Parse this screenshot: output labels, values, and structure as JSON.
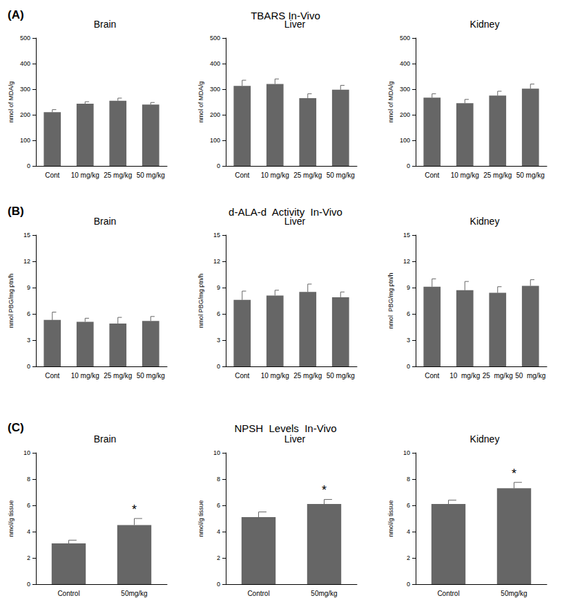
{
  "panels": [
    {
      "label": "(A)",
      "title": "TBARS In-Vivo"
    },
    {
      "label": "(B)",
      "title": "d-ALA-d  Activity  In-Vivo"
    },
    {
      "label": "(C)",
      "title": "NPSH  Levels  In-Vivo"
    }
  ],
  "chart_data": [
    {
      "type": "bar",
      "title": "Brain",
      "y_label": "nmol of MDA/g",
      "categories": [
        "Cont",
        "10 mg/kg",
        "25 mg/kg",
        "50 mg/kg"
      ],
      "values": [
        210,
        243,
        255,
        240
      ],
      "errors": [
        10,
        8,
        10,
        8
      ],
      "color": "#666666",
      "ylim": [
        0,
        500
      ],
      "yticks": [
        0,
        100,
        200,
        300,
        400,
        500
      ],
      "grid": false
    },
    {
      "type": "bar",
      "title": "Liver",
      "y_label": "nmol of MDA/g",
      "categories": [
        "Cont",
        "10 mg/kg",
        "25 mg/kg",
        "50 mg/kg"
      ],
      "values": [
        313,
        320,
        265,
        298
      ],
      "errors": [
        22,
        20,
        17,
        17
      ],
      "color": "#666666",
      "ylim": [
        0,
        500
      ],
      "yticks": [
        0,
        100,
        200,
        300,
        400,
        500
      ],
      "grid": false
    },
    {
      "type": "bar",
      "title": "Kidney",
      "y_label": "nmol of MDA/g",
      "categories": [
        "Cont",
        "10 mg/kg",
        "25 mg/kg",
        "50 mg/kg"
      ],
      "values": [
        267,
        245,
        275,
        302
      ],
      "errors": [
        15,
        15,
        17,
        18
      ],
      "color": "#666666",
      "ylim": [
        0,
        500
      ],
      "yticks": [
        0,
        100,
        200,
        300,
        400,
        500
      ],
      "grid": false
    },
    {
      "type": "bar",
      "title": "Brain",
      "y_label": "nmol PBG/mg ptn/h",
      "categories": [
        "Cont",
        "10 mg/kg",
        "25 mg/kg",
        "50 mg/kg"
      ],
      "values": [
        5.3,
        5.1,
        4.9,
        5.2
      ],
      "errors": [
        0.9,
        0.4,
        0.7,
        0.5
      ],
      "color": "#666666",
      "ylim": [
        0,
        15
      ],
      "yticks": [
        0,
        3,
        6,
        9,
        12,
        15
      ],
      "grid": false
    },
    {
      "type": "bar",
      "title": "Liver",
      "y_label": "nmol PBG/mg ptn/h",
      "categories": [
        "Cont",
        "10 mg/kg",
        "25 mg/kg",
        "50 mg/kg"
      ],
      "values": [
        7.6,
        8.1,
        8.5,
        7.9
      ],
      "errors": [
        1.0,
        0.6,
        0.9,
        0.6
      ],
      "color": "#666666",
      "ylim": [
        0,
        15
      ],
      "yticks": [
        0,
        3,
        6,
        9,
        12,
        15
      ],
      "grid": false
    },
    {
      "type": "bar",
      "title": "Kidney",
      "y_label": "nmol  PBG/mg ptn/h",
      "categories": [
        "Cont",
        "10  mg/kg",
        "25  mg/kg",
        "50  mg/kg"
      ],
      "values": [
        9.1,
        8.7,
        8.4,
        9.2
      ],
      "errors": [
        0.9,
        1.0,
        0.7,
        0.7
      ],
      "color": "#666666",
      "ylim": [
        0,
        15
      ],
      "yticks": [
        0,
        3,
        6,
        9,
        12,
        15
      ],
      "grid": false
    },
    {
      "type": "bar",
      "title": "Brain",
      "y_label": "nmol/g tissue",
      "categories": [
        "Control",
        "50mg/kg"
      ],
      "values": [
        3.1,
        4.5
      ],
      "errors": [
        0.25,
        0.5
      ],
      "annotations": [
        null,
        "*"
      ],
      "color": "#666666",
      "ylim": [
        0,
        10
      ],
      "yticks": [
        0,
        2,
        4,
        6,
        8,
        10
      ],
      "grid": false
    },
    {
      "type": "bar",
      "title": "Liver",
      "y_label": "nmol/g tissue",
      "categories": [
        "Control",
        "50mg/kg"
      ],
      "values": [
        5.1,
        6.1
      ],
      "errors": [
        0.4,
        0.35
      ],
      "annotations": [
        null,
        "*"
      ],
      "color": "#666666",
      "ylim": [
        0,
        10
      ],
      "yticks": [
        0,
        2,
        4,
        6,
        8,
        10
      ],
      "grid": false
    },
    {
      "type": "bar",
      "title": "Kidney",
      "y_label": "nmol/g tissue",
      "categories": [
        "Control",
        "50mg/kg"
      ],
      "values": [
        6.1,
        7.3
      ],
      "errors": [
        0.3,
        0.45
      ],
      "annotations": [
        null,
        "*"
      ],
      "color": "#666666",
      "ylim": [
        0,
        10
      ],
      "yticks": [
        0,
        2,
        4,
        6,
        8,
        10
      ],
      "grid": false
    }
  ]
}
